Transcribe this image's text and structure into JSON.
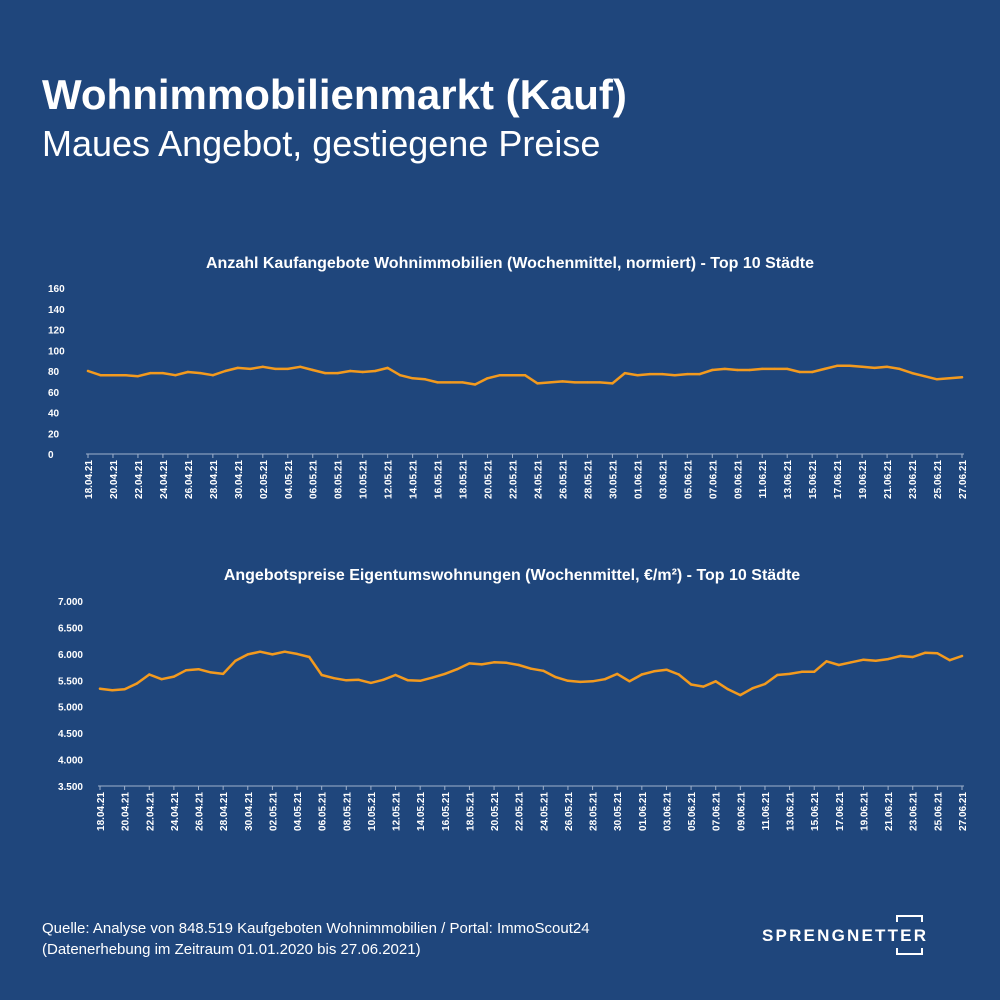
{
  "header": {
    "title": "Wohnimmobilienmarkt (Kauf)",
    "subtitle": "Maues Angebot, gestiegene Preise"
  },
  "footer": {
    "source_line1": "Quelle: Analyse von 848.519 Kaufgeboten Wohnimmobilien / Portal: ImmoScout24",
    "source_line2": "(Datenerhebung im Zeitraum  01.01.2020 bis  27.06.2021)",
    "brand": "SPRENGNETTER"
  },
  "colors": {
    "background": "#1f467c",
    "line": "#f39a1e",
    "text": "#ffffff"
  },
  "chart_data": [
    {
      "type": "line",
      "title": "Anzahl Kaufangebote Wohnimmobilien (Wochenmittel, normiert) - Top 10 Städte",
      "xlabel": "",
      "ylabel": "",
      "ylim": [
        0,
        160
      ],
      "yticks": [
        "0",
        "20",
        "40",
        "60",
        "80",
        "100",
        "120",
        "140",
        "160"
      ],
      "grid": false,
      "xtick_labels": [
        "18.04.21",
        "20.04.21",
        "22.04.21",
        "24.04.21",
        "26.04.21",
        "28.04.21",
        "30.04.21",
        "02.05.21",
        "04.05.21",
        "06.05.21",
        "08.05.21",
        "10.05.21",
        "12.05.21",
        "14.05.21",
        "16.05.21",
        "18.05.21",
        "20.05.21",
        "22.05.21",
        "24.05.21",
        "26.05.21",
        "28.05.21",
        "30.05.21",
        "01.06.21",
        "03.06.21",
        "05.06.21",
        "07.06.21",
        "09.06.21",
        "11.06.21",
        "13.06.21",
        "15.06.21",
        "17.06.21",
        "19.06.21",
        "21.06.21",
        "23.06.21",
        "25.06.21",
        "27.06.21"
      ],
      "x": [
        "18.04.21",
        "19.04.21",
        "20.04.21",
        "21.04.21",
        "22.04.21",
        "23.04.21",
        "24.04.21",
        "25.04.21",
        "26.04.21",
        "27.04.21",
        "28.04.21",
        "29.04.21",
        "30.04.21",
        "01.05.21",
        "02.05.21",
        "03.05.21",
        "04.05.21",
        "05.05.21",
        "06.05.21",
        "07.05.21",
        "08.05.21",
        "09.05.21",
        "10.05.21",
        "11.05.21",
        "12.05.21",
        "13.05.21",
        "14.05.21",
        "15.05.21",
        "16.05.21",
        "17.05.21",
        "18.05.21",
        "19.05.21",
        "20.05.21",
        "21.05.21",
        "22.05.21",
        "23.05.21",
        "24.05.21",
        "25.05.21",
        "26.05.21",
        "27.05.21",
        "28.05.21",
        "29.05.21",
        "30.05.21",
        "31.05.21",
        "01.06.21",
        "02.06.21",
        "03.06.21",
        "04.06.21",
        "05.06.21",
        "06.06.21",
        "07.06.21",
        "08.06.21",
        "09.06.21",
        "10.06.21",
        "11.06.21",
        "12.06.21",
        "13.06.21",
        "14.06.21",
        "15.06.21",
        "16.06.21",
        "17.06.21",
        "18.06.21",
        "19.06.21",
        "20.06.21",
        "21.06.21",
        "22.06.21",
        "23.06.21",
        "24.06.21",
        "25.06.21",
        "26.06.21",
        "27.06.21"
      ],
      "series": [
        {
          "values": [
            80,
            76,
            76,
            76,
            75,
            78,
            78,
            76,
            79,
            78,
            76,
            80,
            83,
            82,
            84,
            82,
            82,
            84,
            81,
            78,
            78,
            80,
            79,
            80,
            83,
            76,
            73,
            72,
            69,
            69,
            69,
            67,
            73,
            76,
            76,
            76,
            68,
            69,
            70,
            69,
            69,
            69,
            68,
            78,
            76,
            77,
            77,
            76,
            77,
            77,
            81,
            82,
            81,
            81,
            82,
            82,
            82,
            79,
            79,
            82,
            85,
            85,
            84,
            83,
            84,
            82,
            78,
            75,
            72,
            73,
            74
          ]
        }
      ]
    },
    {
      "type": "line",
      "title": "Angebotspreise Eigentumswohnungen (Wochenmittel, €/m²) - Top 10 Städte",
      "xlabel": "",
      "ylabel": "",
      "ylim": [
        3500,
        7000
      ],
      "yticks": [
        "3.500",
        "4.000",
        "4.500",
        "5.000",
        "5.500",
        "6.000",
        "6.500",
        "7.000"
      ],
      "grid": false,
      "xtick_labels": [
        "18.04.21",
        "20.04.21",
        "22.04.21",
        "24.04.21",
        "26.04.21",
        "28.04.21",
        "30.04.21",
        "02.05.21",
        "04.05.21",
        "06.05.21",
        "08.05.21",
        "10.05.21",
        "12.05.21",
        "14.05.21",
        "16.05.21",
        "18.05.21",
        "20.05.21",
        "22.05.21",
        "24.05.21",
        "26.05.21",
        "28.05.21",
        "30.05.21",
        "01.06.21",
        "03.06.21",
        "05.06.21",
        "07.06.21",
        "09.06.21",
        "11.06.21",
        "13.06.21",
        "15.06.21",
        "17.06.21",
        "19.06.21",
        "21.06.21",
        "23.06.21",
        "25.06.21",
        "27.06.21"
      ],
      "x": [
        "18.04.21",
        "19.04.21",
        "20.04.21",
        "21.04.21",
        "22.04.21",
        "23.04.21",
        "24.04.21",
        "25.04.21",
        "26.04.21",
        "27.04.21",
        "28.04.21",
        "29.04.21",
        "30.04.21",
        "01.05.21",
        "02.05.21",
        "03.05.21",
        "04.05.21",
        "05.05.21",
        "06.05.21",
        "07.05.21",
        "08.05.21",
        "09.05.21",
        "10.05.21",
        "11.05.21",
        "12.05.21",
        "13.05.21",
        "14.05.21",
        "15.05.21",
        "16.05.21",
        "17.05.21",
        "18.05.21",
        "19.05.21",
        "20.05.21",
        "21.05.21",
        "22.05.21",
        "23.05.21",
        "24.05.21",
        "25.05.21",
        "26.05.21",
        "27.05.21",
        "28.05.21",
        "29.05.21",
        "30.05.21",
        "31.05.21",
        "01.06.21",
        "02.06.21",
        "03.06.21",
        "04.06.21",
        "05.06.21",
        "06.06.21",
        "07.06.21",
        "08.06.21",
        "09.06.21",
        "10.06.21",
        "11.06.21",
        "12.06.21",
        "13.06.21",
        "14.06.21",
        "15.06.21",
        "16.06.21",
        "17.06.21",
        "18.06.21",
        "19.06.21",
        "20.06.21",
        "21.06.21",
        "22.06.21",
        "23.06.21",
        "24.06.21",
        "25.06.21",
        "26.06.21",
        "27.06.21"
      ],
      "series": [
        {
          "values": [
            5340,
            5310,
            5330,
            5440,
            5610,
            5520,
            5570,
            5690,
            5710,
            5650,
            5620,
            5870,
            5990,
            6040,
            5990,
            6040,
            6000,
            5940,
            5600,
            5540,
            5500,
            5510,
            5450,
            5510,
            5600,
            5500,
            5490,
            5550,
            5620,
            5710,
            5820,
            5800,
            5840,
            5830,
            5790,
            5720,
            5680,
            5560,
            5490,
            5470,
            5480,
            5520,
            5620,
            5480,
            5610,
            5670,
            5700,
            5610,
            5420,
            5380,
            5480,
            5330,
            5220,
            5350,
            5430,
            5600,
            5620,
            5660,
            5660,
            5860,
            5790,
            5840,
            5890,
            5870,
            5900,
            5960,
            5940,
            6020,
            6010,
            5880,
            5960
          ]
        }
      ]
    }
  ]
}
